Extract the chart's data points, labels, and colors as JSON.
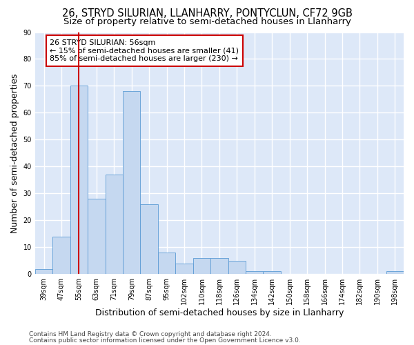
{
  "title": "26, STRYD SILURIAN, LLANHARRY, PONTYCLUN, CF72 9GB",
  "subtitle": "Size of property relative to semi-detached houses in Llanharry",
  "xlabel": "Distribution of semi-detached houses by size in Llanharry",
  "ylabel": "Number of semi-detached properties",
  "categories": [
    "39sqm",
    "47sqm",
    "55sqm",
    "63sqm",
    "71sqm",
    "79sqm",
    "87sqm",
    "95sqm",
    "102sqm",
    "110sqm",
    "118sqm",
    "126sqm",
    "134sqm",
    "142sqm",
    "150sqm",
    "158sqm",
    "166sqm",
    "174sqm",
    "182sqm",
    "190sqm",
    "198sqm"
  ],
  "values": [
    2,
    14,
    70,
    28,
    37,
    68,
    26,
    8,
    4,
    6,
    6,
    5,
    1,
    1,
    0,
    0,
    0,
    0,
    0,
    0,
    1
  ],
  "bar_color": "#c5d8f0",
  "bar_edge_color": "#5b9bd5",
  "red_line_x": 2.5,
  "red_line_color": "#cc0000",
  "annotation_line1": "26 STRYD SILURIAN: 56sqm",
  "annotation_line2": "← 15% of semi-detached houses are smaller (41)",
  "annotation_line3": "85% of semi-detached houses are larger (230) →",
  "annotation_box_color": "#ffffff",
  "annotation_box_edge": "#cc0000",
  "ylim": [
    0,
    90
  ],
  "yticks": [
    0,
    10,
    20,
    30,
    40,
    50,
    60,
    70,
    80,
    90
  ],
  "footer1": "Contains HM Land Registry data © Crown copyright and database right 2024.",
  "footer2": "Contains public sector information licensed under the Open Government Licence v3.0.",
  "bg_color": "#dde8f8",
  "grid_color": "#ffffff",
  "title_fontsize": 10.5,
  "subtitle_fontsize": 9.5,
  "axis_label_fontsize": 9,
  "tick_fontsize": 7,
  "footer_fontsize": 6.5,
  "annotation_fontsize": 8
}
